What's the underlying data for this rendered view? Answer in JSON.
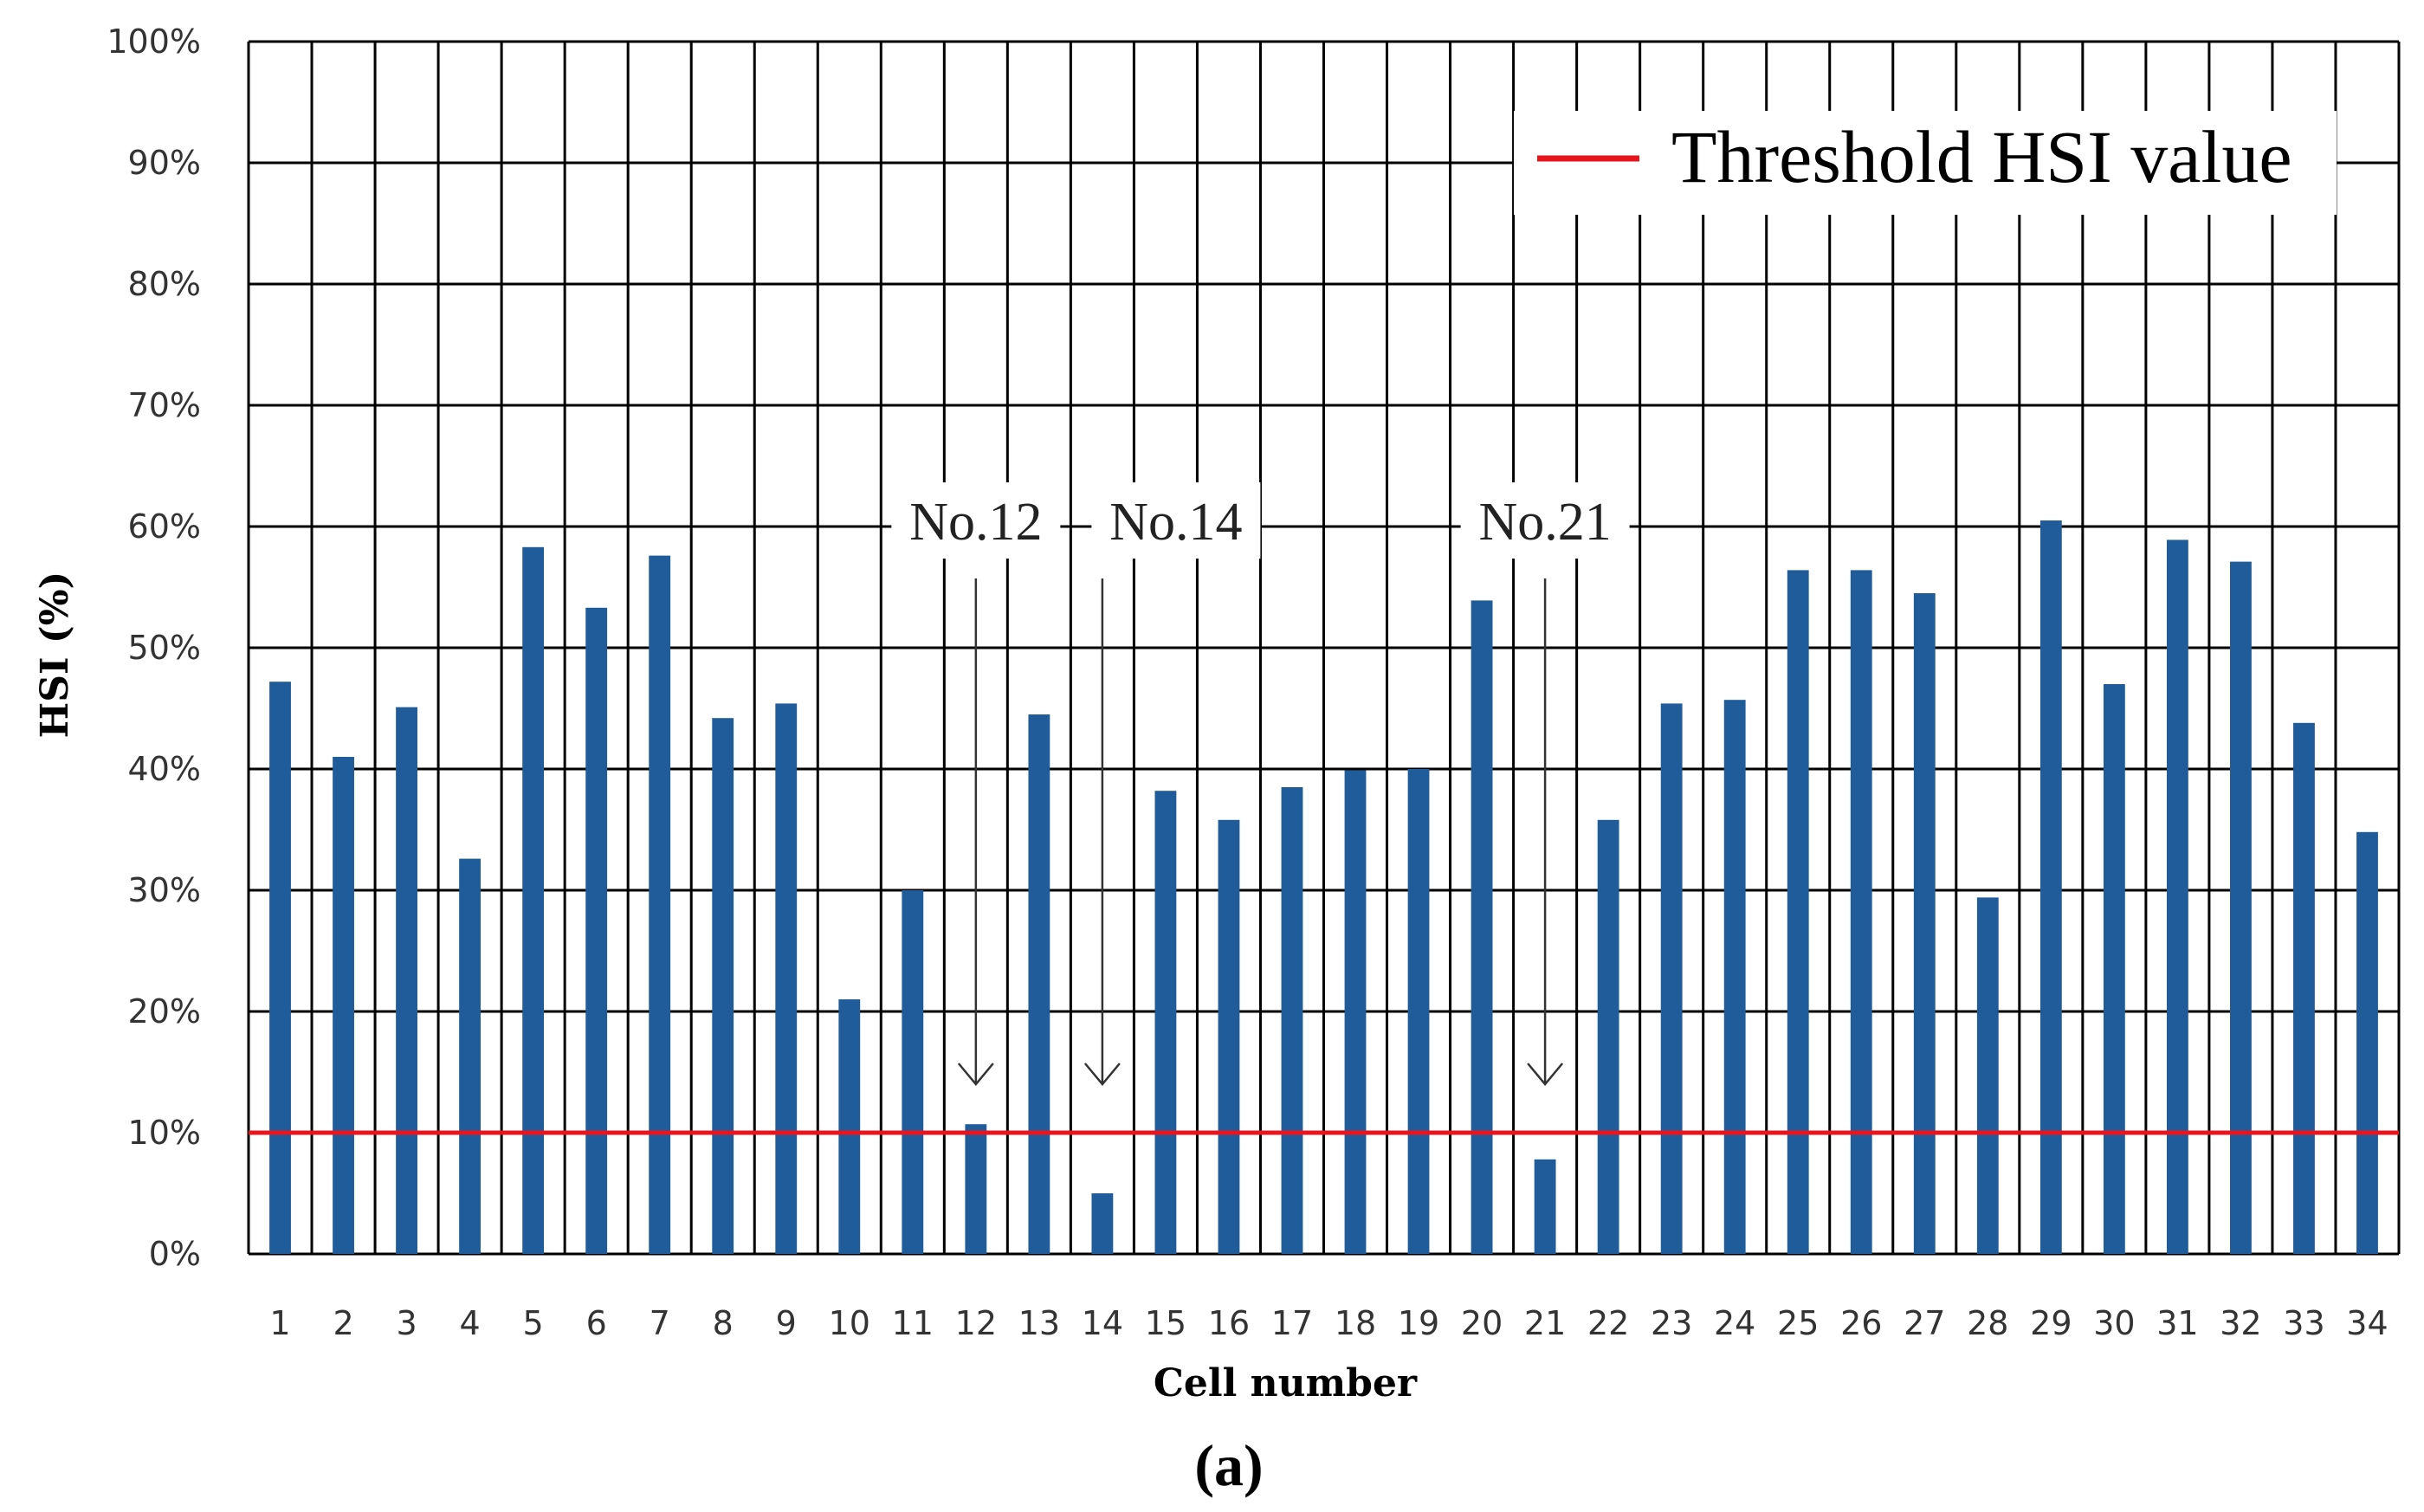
{
  "chart_data": {
    "type": "bar",
    "title": "",
    "xlabel": "Cell number",
    "ylabel": "HSI (%)",
    "ylim": [
      0,
      100
    ],
    "yticks": [
      "0%",
      "10%",
      "20%",
      "30%",
      "40%",
      "50%",
      "60%",
      "70%",
      "80%",
      "90%",
      "100%"
    ],
    "categories": [
      "1",
      "2",
      "3",
      "4",
      "5",
      "6",
      "7",
      "8",
      "9",
      "10",
      "11",
      "12",
      "13",
      "14",
      "15",
      "16",
      "17",
      "18",
      "19",
      "20",
      "21",
      "22",
      "23",
      "24",
      "25",
      "26",
      "27",
      "28",
      "29",
      "30",
      "31",
      "32",
      "33",
      "34"
    ],
    "series": [
      {
        "name": "HSI",
        "color": "#1F5C99",
        "values": [
          47.2,
          41.0,
          45.1,
          32.6,
          58.3,
          53.3,
          57.6,
          44.2,
          45.4,
          21.0,
          30.0,
          10.7,
          44.5,
          5.0,
          38.2,
          35.8,
          38.5,
          39.9,
          40.0,
          53.9,
          7.8,
          35.8,
          45.4,
          45.7,
          56.4,
          56.4,
          54.5,
          29.4,
          60.5,
          47.0,
          58.9,
          57.1,
          43.8,
          34.8
        ]
      }
    ],
    "threshold": {
      "label": "Threshold HSI value",
      "value": 10,
      "color": "#E8141E"
    },
    "annotations": [
      {
        "label": "No.12",
        "category_index": 11
      },
      {
        "label": "No.14",
        "category_index": 13
      },
      {
        "label": "No.21",
        "category_index": 20
      }
    ],
    "grid": true,
    "legend_position": "top-right"
  },
  "caption": "(a)"
}
